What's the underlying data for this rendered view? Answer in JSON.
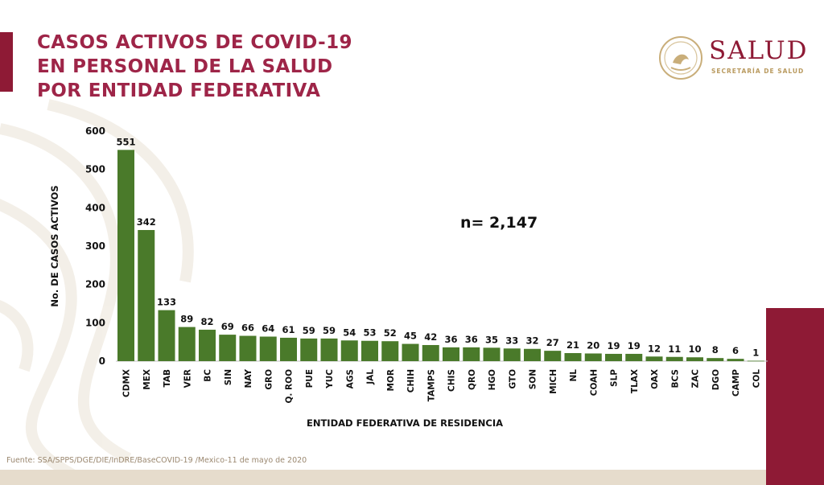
{
  "slide": {
    "title": "CASOS  ACTIVOS DE COVID-19\nEN PERSONAL DE LA SALUD\nPOR ENTIDAD FEDERATIVA",
    "logo": {
      "name": "SALUD",
      "subtitle": "SECRETARÍA DE SALUD"
    },
    "n_label": "n= 2,147",
    "source": "Fuente: SSA/SPPS/DGE/DIE/InDRE/BaseCOVID-19 /Mexico-11 de mayo de 2020"
  },
  "colors": {
    "title": "#9e2548",
    "accent_red": "#8e1a35",
    "bar": "#4a7a2a",
    "logo_gold": "#b99a5f"
  },
  "chart_data": {
    "type": "bar",
    "title": "CASOS  ACTIVOS DE COVID-19\nEN PERSONAL DE LA SALUD\nPOR ENTIDAD FEDERATIVA",
    "xlabel": "ENTIDAD FEDERATIVA DE  RESIDENCIA",
    "ylabel": "No. DE CASOS ACTIVOS",
    "ylim": [
      0,
      600
    ],
    "yticks": [
      0,
      100,
      200,
      300,
      400,
      500,
      600
    ],
    "grid": false,
    "categories": [
      "CDMX",
      "MEX",
      "TAB",
      "VER",
      "BC",
      "SIN",
      "NAY",
      "GRO",
      "Q. ROO",
      "PUE",
      "YUC",
      "AGS",
      "JAL",
      "MOR",
      "CHIH",
      "TAMPS",
      "CHIS",
      "QRO",
      "HGO",
      "GTO",
      "SON",
      "MICH",
      "NL",
      "COAH",
      "SLP",
      "TLAX",
      "OAX",
      "BCS",
      "ZAC",
      "DGO",
      "CAMP",
      "COL"
    ],
    "values": [
      551,
      342,
      133,
      89,
      82,
      69,
      66,
      64,
      61,
      59,
      59,
      54,
      53,
      52,
      45,
      42,
      36,
      36,
      35,
      33,
      32,
      27,
      21,
      20,
      19,
      19,
      12,
      11,
      10,
      8,
      6,
      1
    ],
    "annotation": "n= 2,147"
  }
}
